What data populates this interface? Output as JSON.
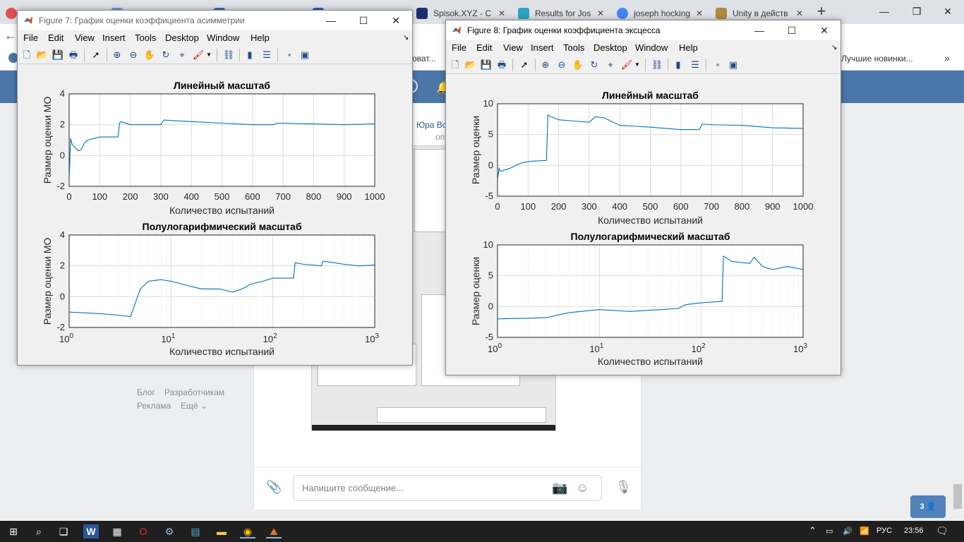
{
  "browser": {
    "tabs": [
      {
        "label": "",
        "fav": "#e04f4f"
      },
      {
        "label": "",
        "fav": "#6a9fd4"
      },
      {
        "label": "",
        "fav": "#3b6fb5"
      },
      {
        "label": "",
        "fav": "#2a64c2"
      },
      {
        "label": "Spisok.XYZ - C",
        "fav": "#1e2e6e"
      },
      {
        "label": "Results for Jos",
        "fav": "#2aa4c2"
      },
      {
        "label": "joseph hocking",
        "fav": "#4285f4"
      },
      {
        "label": "Unity в действ",
        "fav": "#b08a3e"
      }
    ],
    "new_tab": "+",
    "bookmarks": {
      "partial_left": "оват...",
      "right": "Лучшие новинки..."
    },
    "vk": {
      "name": "Юра Во",
      "sub": "on",
      "links": [
        "Блог",
        "Разработчикам",
        "Реклама",
        "Ещё ⌄"
      ],
      "message_placeholder": "Напишите сообщение...",
      "online_count": "3"
    }
  },
  "fig7": {
    "title": "Figure 7: График оценки коэффициента асимметрии",
    "menu": [
      "File",
      "Edit",
      "View",
      "Insert",
      "Tools",
      "Desktop",
      "Window",
      "Help"
    ],
    "plots": [
      {
        "title": "Линейный масштаб",
        "xlabel": "Количество испытаний",
        "ylabel": "Размер оценки МО",
        "xticks": [
          "0",
          "100",
          "200",
          "300",
          "400",
          "500",
          "600",
          "700",
          "800",
          "900",
          "1000"
        ],
        "yticks": [
          "4",
          "2",
          "0",
          "-2"
        ]
      },
      {
        "title": "Полулогарифмический масштаб",
        "xlabel": "Количество испытаний",
        "ylabel": "Размер оценки МО",
        "yticks": [
          "4",
          "2",
          "0",
          "-2"
        ]
      }
    ]
  },
  "fig8": {
    "title": "Figure 8: График оценки коэффициента эксцесса",
    "menu": [
      "File",
      "Edit",
      "View",
      "Insert",
      "Tools",
      "Desktop",
      "Window",
      "Help"
    ],
    "plots": [
      {
        "title": "Линейный масштаб",
        "xlabel": "Количество испытаний",
        "ylabel": "Размер оценки",
        "xticks": [
          "0",
          "100",
          "200",
          "300",
          "400",
          "500",
          "600",
          "700",
          "800",
          "900",
          "1000"
        ],
        "yticks": [
          "10",
          "5",
          "0",
          "-5"
        ]
      },
      {
        "title": "Полулогарифмический масштаб",
        "xlabel": "Количество испытаний",
        "ylabel": "Размер оценки",
        "yticks": [
          "10",
          "5",
          "0",
          "-5"
        ]
      }
    ]
  },
  "log_ticks": {
    "base": "10",
    "exps": [
      "0",
      "1",
      "2",
      "3"
    ]
  },
  "taskbar": {
    "lang": "РУС",
    "time": "23:56"
  },
  "chart_data": [
    {
      "type": "line",
      "x": [
        1,
        3,
        5,
        10,
        20,
        30,
        40,
        50,
        60,
        80,
        100,
        120,
        160,
        165,
        170,
        200,
        250,
        300,
        310,
        350,
        400,
        500,
        600,
        670,
        680,
        700,
        800,
        900,
        1000
      ],
      "series": [
        {
          "values": [
            -1.2,
            0.2,
            1.1,
            0.7,
            0.5,
            0.3,
            0.4,
            0.8,
            1.0,
            1.1,
            1.2,
            1.2,
            1.2,
            2.1,
            2.2,
            2.0,
            2.0,
            2.0,
            2.3,
            2.25,
            2.2,
            2.1,
            2.0,
            2.0,
            2.1,
            2.1,
            2.05,
            2.0,
            2.05
          ]
        }
      ],
      "title": "Линейный масштаб",
      "xlabel": "Количество испытаний",
      "ylabel": "Размер оценки МО",
      "xlim": [
        0,
        1000
      ],
      "ylim": [
        -2,
        4
      ],
      "grid": true
    },
    {
      "type": "line",
      "x": [
        1,
        2,
        3,
        4,
        5,
        6,
        8,
        10,
        15,
        20,
        30,
        40,
        50,
        60,
        80,
        100,
        120,
        160,
        165,
        200,
        300,
        310,
        400,
        500,
        700,
        1000
      ],
      "series": [
        {
          "values": [
            -1.0,
            -1.1,
            -1.2,
            -1.3,
            0.5,
            1.0,
            1.1,
            1.0,
            0.7,
            0.5,
            0.5,
            0.3,
            0.5,
            0.8,
            1.0,
            1.2,
            1.2,
            1.2,
            2.2,
            2.1,
            2.0,
            2.3,
            2.2,
            2.1,
            2.0,
            2.05
          ]
        }
      ],
      "title": "Полулогарифмический масштаб",
      "xlabel": "Количество испытаний",
      "ylabel": "Размер оценки МО",
      "xlim": [
        1,
        1000
      ],
      "xscale": "log",
      "ylim": [
        -2,
        4
      ],
      "grid": true
    },
    {
      "type": "line",
      "x": [
        1,
        5,
        10,
        20,
        40,
        60,
        80,
        100,
        120,
        160,
        165,
        170,
        200,
        250,
        300,
        320,
        350,
        400,
        500,
        600,
        660,
        670,
        700,
        800,
        900,
        1000
      ],
      "series": [
        {
          "values": [
            -2.0,
            -0.5,
            -1.0,
            -0.8,
            -0.5,
            0.0,
            0.4,
            0.6,
            0.7,
            0.8,
            8.2,
            8.0,
            7.4,
            7.2,
            7.0,
            7.9,
            7.7,
            6.5,
            6.2,
            5.8,
            5.8,
            6.7,
            6.6,
            6.5,
            6.1,
            6.0
          ]
        }
      ],
      "title": "Линейный масштаб",
      "xlabel": "Количество испытаний",
      "ylabel": "Размер оценки",
      "xlim": [
        0,
        1000
      ],
      "ylim": [
        -5,
        10
      ],
      "grid": true
    },
    {
      "type": "line",
      "x": [
        1,
        2,
        3,
        5,
        10,
        20,
        40,
        60,
        70,
        100,
        150,
        160,
        165,
        200,
        300,
        330,
        400,
        500,
        700,
        1000
      ],
      "series": [
        {
          "values": [
            -2.0,
            -1.9,
            -1.8,
            -1.0,
            -0.5,
            -0.8,
            -0.5,
            -0.3,
            0.3,
            0.6,
            0.8,
            0.8,
            8.2,
            7.3,
            7.0,
            8.0,
            6.5,
            6.0,
            6.5,
            6.0
          ]
        }
      ],
      "title": "Полулогарифмический масштаб",
      "xlabel": "Количество испытаний",
      "ylabel": "Размер оценки",
      "xlim": [
        1,
        1000
      ],
      "xscale": "log",
      "ylim": [
        -5,
        10
      ],
      "grid": true
    }
  ]
}
